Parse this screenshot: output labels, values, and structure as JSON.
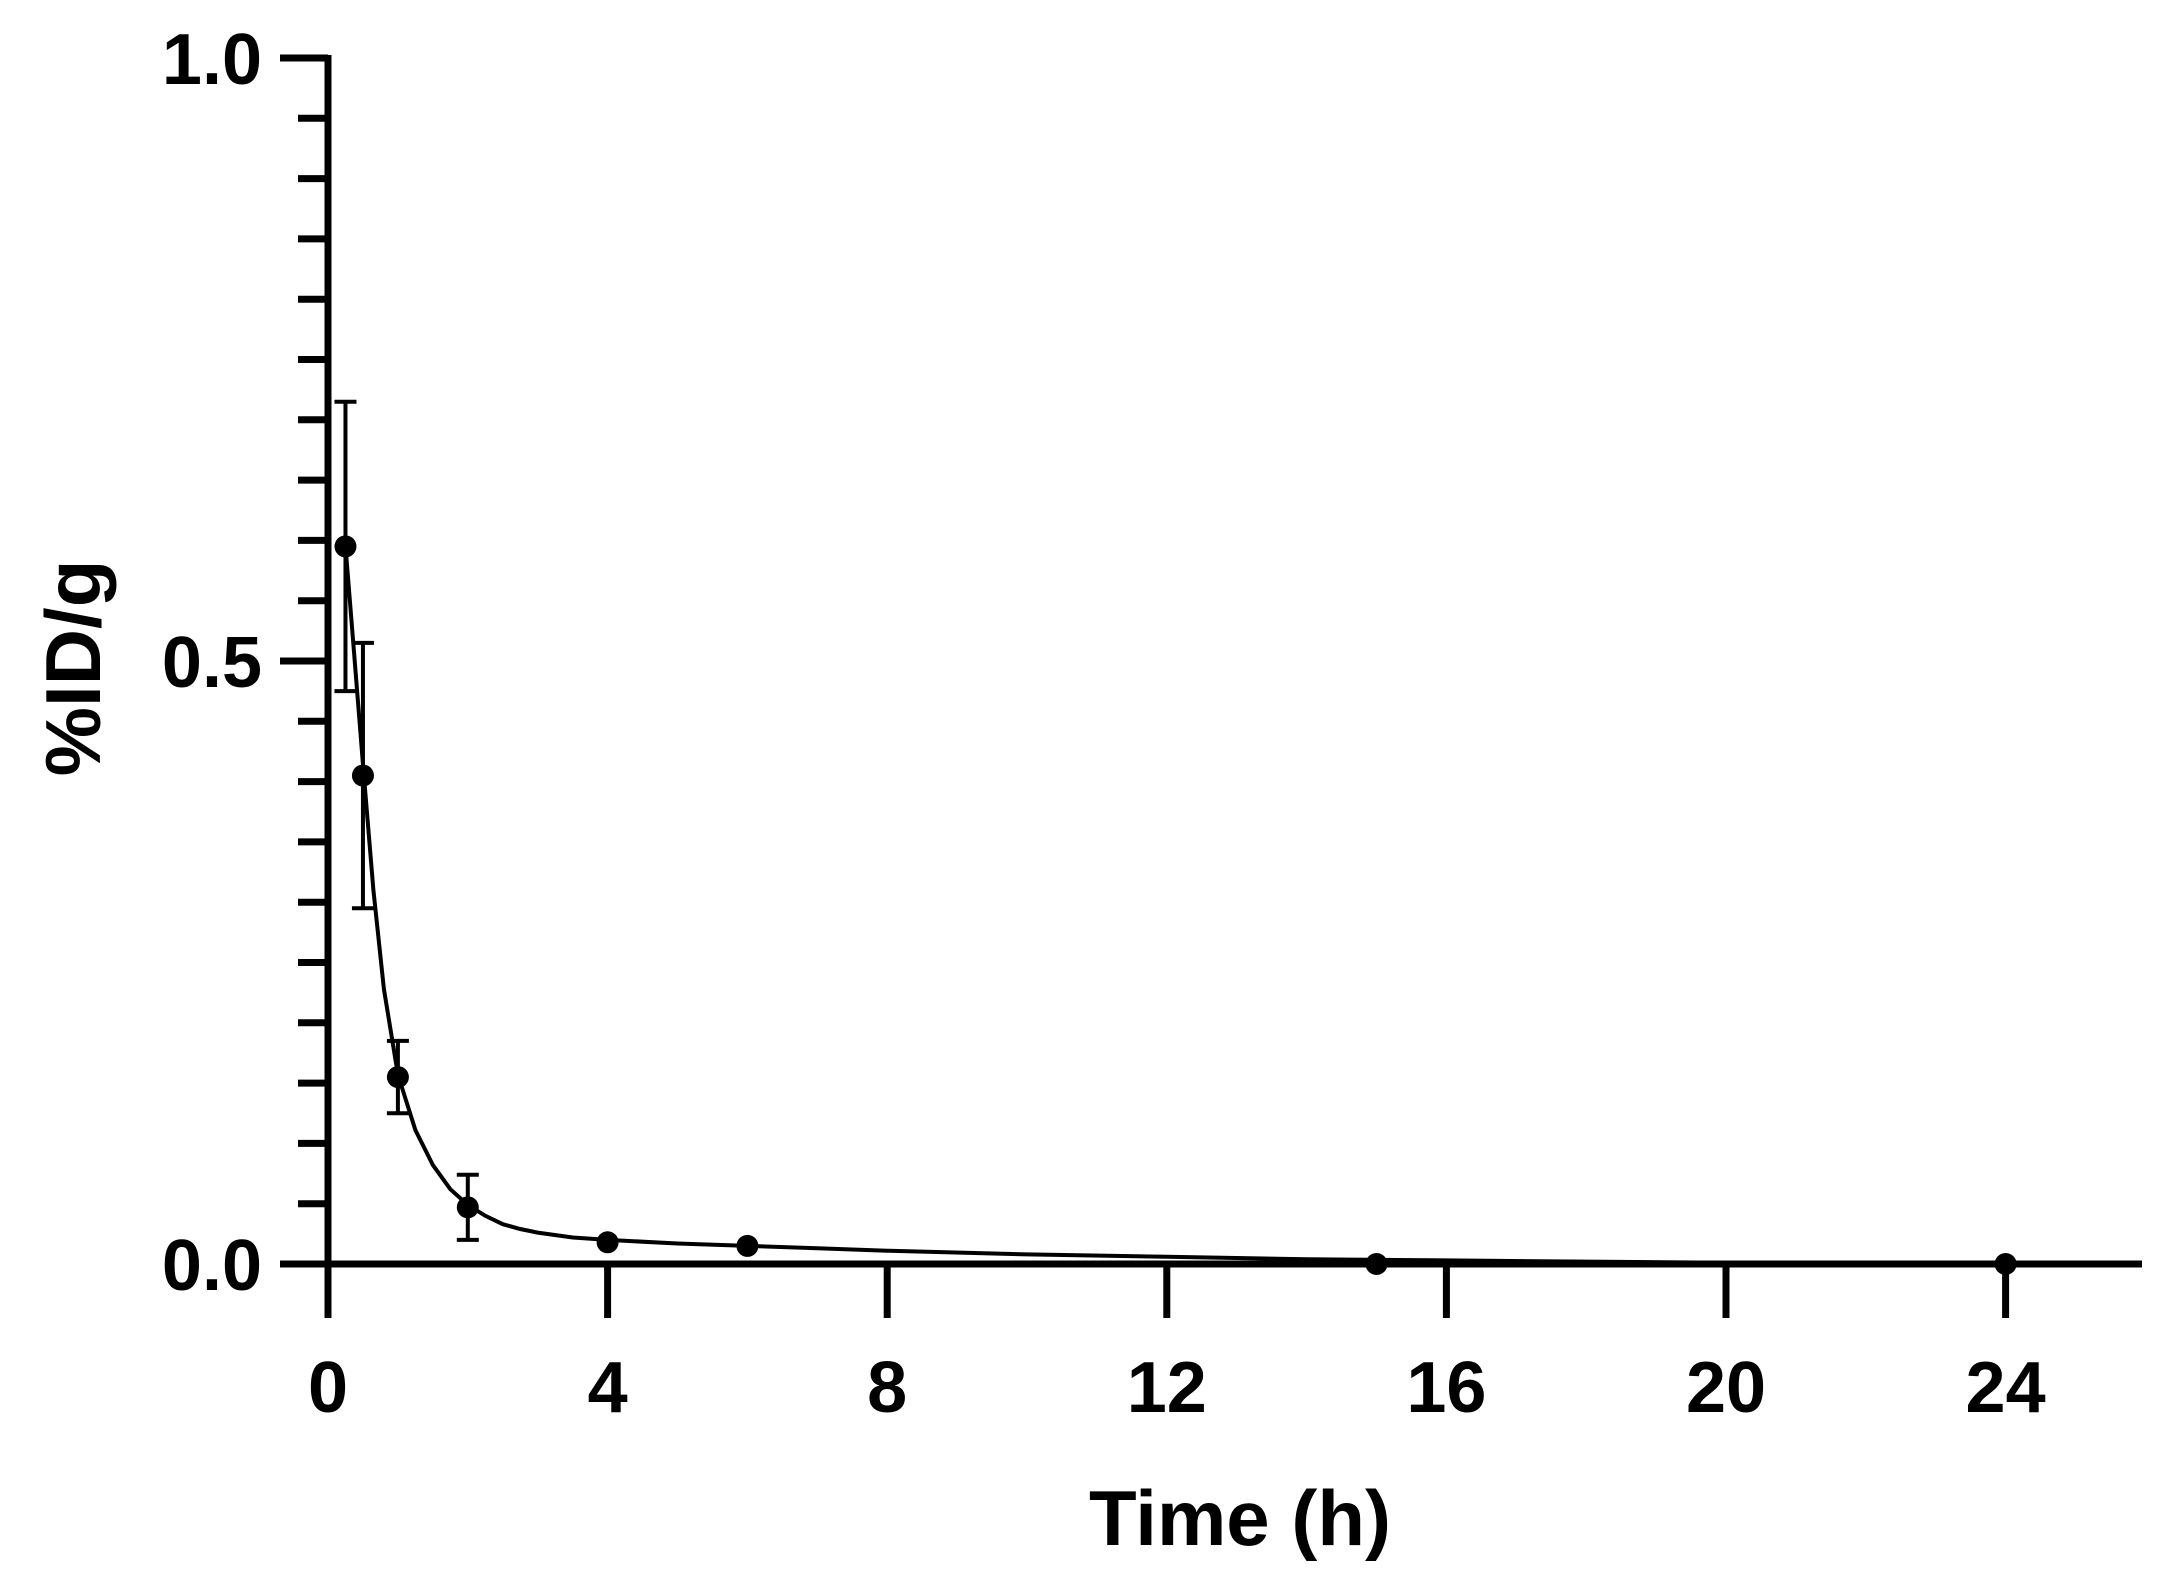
{
  "chart_data": {
    "type": "line",
    "xlabel": "Time (h)",
    "ylabel": "%ID/g",
    "xlim": [
      0,
      26
    ],
    "ylim": [
      0,
      1.0
    ],
    "x_ticks": [
      "0",
      "4",
      "8",
      "12",
      "16",
      "20",
      "24"
    ],
    "y_ticks": [
      "0.0",
      "0.5",
      "1.0"
    ],
    "y_minor_step": 0.05,
    "grid": false,
    "series": [
      {
        "markers": [
          {
            "x": 0.25,
            "y": 0.595,
            "err_low": 0.12,
            "err_high": 0.12
          },
          {
            "x": 0.5,
            "y": 0.405,
            "err_low": 0.11,
            "err_high": 0.11
          },
          {
            "x": 1,
            "y": 0.155,
            "err_low": 0.03,
            "err_high": 0.03
          },
          {
            "x": 2,
            "y": 0.047,
            "err_low": 0.027,
            "err_high": 0.027
          },
          {
            "x": 4,
            "y": 0.018,
            "err_low": 0,
            "err_high": 0
          },
          {
            "x": 6,
            "y": 0.015,
            "err_low": 0,
            "err_high": 0
          },
          {
            "x": 15,
            "y": 0.0,
            "err_low": 0,
            "err_high": 0
          },
          {
            "x": 24,
            "y": 0.0,
            "err_low": 0,
            "err_high": 0
          }
        ],
        "fit_curve": {
          "x": [
            0.25,
            0.35,
            0.5,
            0.65,
            0.8,
            1,
            1.25,
            1.5,
            1.75,
            2,
            2.25,
            2.5,
            2.75,
            3,
            3.5,
            4,
            5,
            6,
            7,
            8,
            10,
            12,
            14,
            16,
            18,
            20,
            22,
            24
          ],
          "y": [
            0.595,
            0.523,
            0.415,
            0.31,
            0.228,
            0.157,
            0.111,
            0.082,
            0.062,
            0.049,
            0.04,
            0.033,
            0.029,
            0.026,
            0.022,
            0.02,
            0.017,
            0.015,
            0.013,
            0.011,
            0.008,
            0.006,
            0.004,
            0.003,
            0.002,
            0.001,
            0.0005,
            0.0
          ]
        }
      }
    ]
  }
}
